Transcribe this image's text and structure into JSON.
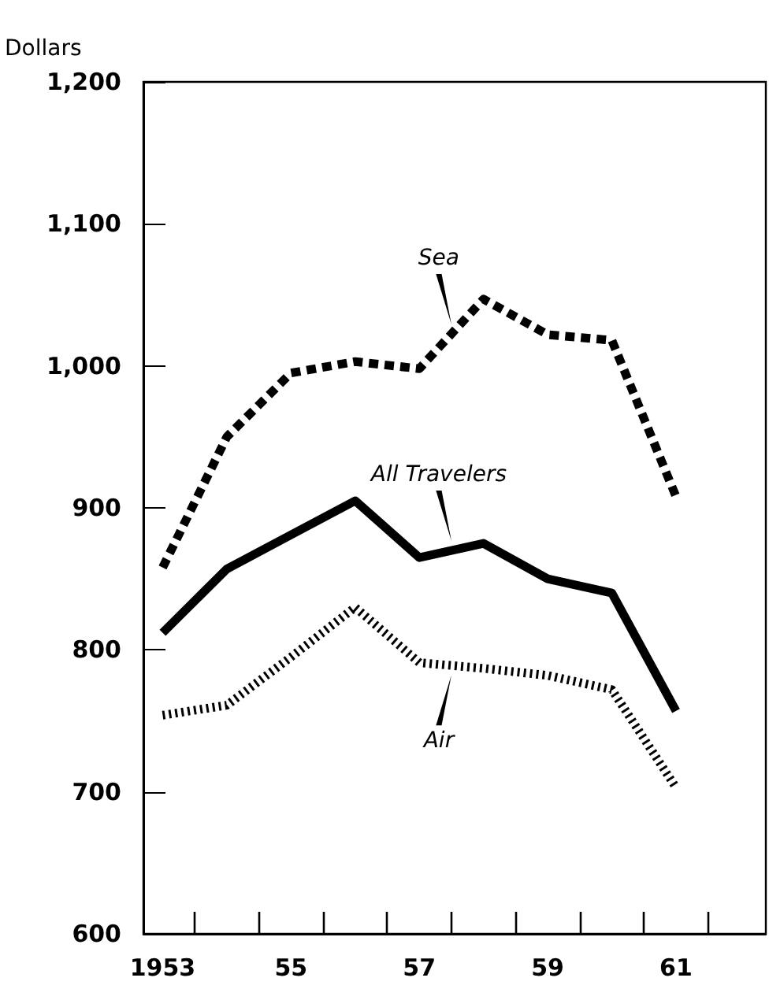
{
  "chart_data": {
    "type": "line",
    "ylabel": "Dollars",
    "x": [
      1953,
      1954,
      1955,
      1956,
      1957,
      1958,
      1959,
      1960,
      1961
    ],
    "xlim": [
      1952.7,
      1962.4
    ],
    "xticks": [
      {
        "value": 1953,
        "label": "1953"
      },
      {
        "value": 1955,
        "label": "55"
      },
      {
        "value": 1957,
        "label": "57"
      },
      {
        "value": 1959,
        "label": "59"
      },
      {
        "value": 1961,
        "label": "61"
      },
      {
        "value": 1953.5,
        "label": null
      },
      {
        "value": 1954.5,
        "label": null
      },
      {
        "value": 1955.5,
        "label": null
      },
      {
        "value": 1956.5,
        "label": null
      },
      {
        "value": 1957.5,
        "label": null
      },
      {
        "value": 1958.5,
        "label": null
      },
      {
        "value": 1959.5,
        "label": null
      },
      {
        "value": 1960.5,
        "label": null
      },
      {
        "value": 1961.5,
        "label": null
      }
    ],
    "ylim": [
      600,
      1200
    ],
    "yticks": [
      {
        "value": 600,
        "label": "600"
      },
      {
        "value": 700,
        "label": "700"
      },
      {
        "value": 800,
        "label": "800"
      },
      {
        "value": 900,
        "label": "900"
      },
      {
        "value": 1000,
        "label": "1,000"
      },
      {
        "value": 1100,
        "label": "1,100"
      },
      {
        "value": 1200,
        "label": "1,200"
      }
    ],
    "grid": false,
    "marker": "none",
    "series": [
      {
        "name": "Sea",
        "color": "#000000",
        "line_style": "dashed",
        "values": [
          858,
          950,
          995,
          1003,
          998,
          1047,
          1022,
          1018,
          908
        ]
      },
      {
        "name": "All Travelers",
        "color": "#000000",
        "line_style": "solid",
        "values": [
          812,
          857,
          881,
          905,
          865,
          875,
          850,
          840,
          757
        ]
      },
      {
        "name": "Air",
        "color": "#000000",
        "line_style": "dotted",
        "values": [
          754,
          761,
          795,
          830,
          791,
          787,
          782,
          772,
          703
        ]
      }
    ]
  }
}
